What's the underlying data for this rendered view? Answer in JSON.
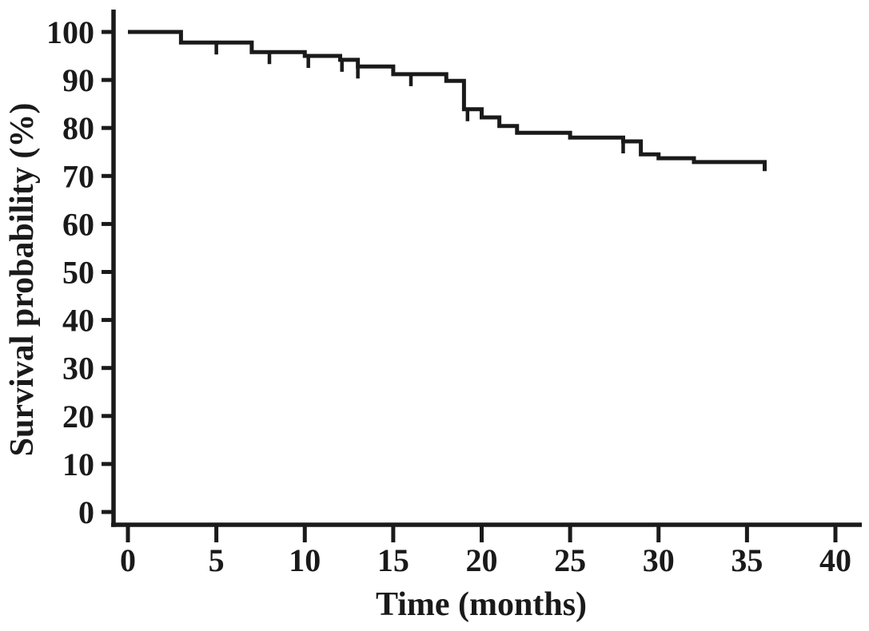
{
  "figure": {
    "background": "#ffffff",
    "ink_color": "#1a1a1a"
  },
  "chart_data": {
    "type": "line",
    "style": "kaplan-meier-step-curve",
    "title": "",
    "xlabel": "Time (months)",
    "ylabel": "Survival probability (%)",
    "xlim": [
      0,
      40
    ],
    "ylim": [
      0,
      100
    ],
    "x_ticks": [
      0,
      5,
      10,
      15,
      20,
      25,
      30,
      35,
      40
    ],
    "y_ticks": [
      0,
      10,
      20,
      30,
      40,
      50,
      60,
      70,
      80,
      90,
      100
    ],
    "grid": false,
    "legend": false,
    "line_color": "#1a1a1a",
    "steps": [
      [
        0,
        100
      ],
      [
        3,
        97.8
      ],
      [
        7,
        95.8
      ],
      [
        10,
        95.0
      ],
      [
        12,
        94.2
      ],
      [
        13,
        92.8
      ],
      [
        15,
        91.2
      ],
      [
        18,
        89.8
      ],
      [
        19,
        83.9
      ],
      [
        20,
        82.2
      ],
      [
        21,
        80.4
      ],
      [
        22,
        79.0
      ],
      [
        25,
        78.0
      ],
      [
        28,
        77.2
      ],
      [
        29,
        74.5
      ],
      [
        30,
        73.7
      ],
      [
        32,
        72.9
      ],
      [
        36,
        71.0
      ]
    ],
    "censor_marks": [
      {
        "t": 5,
        "v": 97.8
      },
      {
        "t": 8,
        "v": 95.8
      },
      {
        "t": 10.2,
        "v": 95.0
      },
      {
        "t": 12.1,
        "v": 94.2
      },
      {
        "t": 13,
        "v": 92.8
      },
      {
        "t": 16,
        "v": 91.2
      },
      {
        "t": 19.2,
        "v": 83.9
      },
      {
        "t": 28,
        "v": 77.2
      }
    ]
  }
}
